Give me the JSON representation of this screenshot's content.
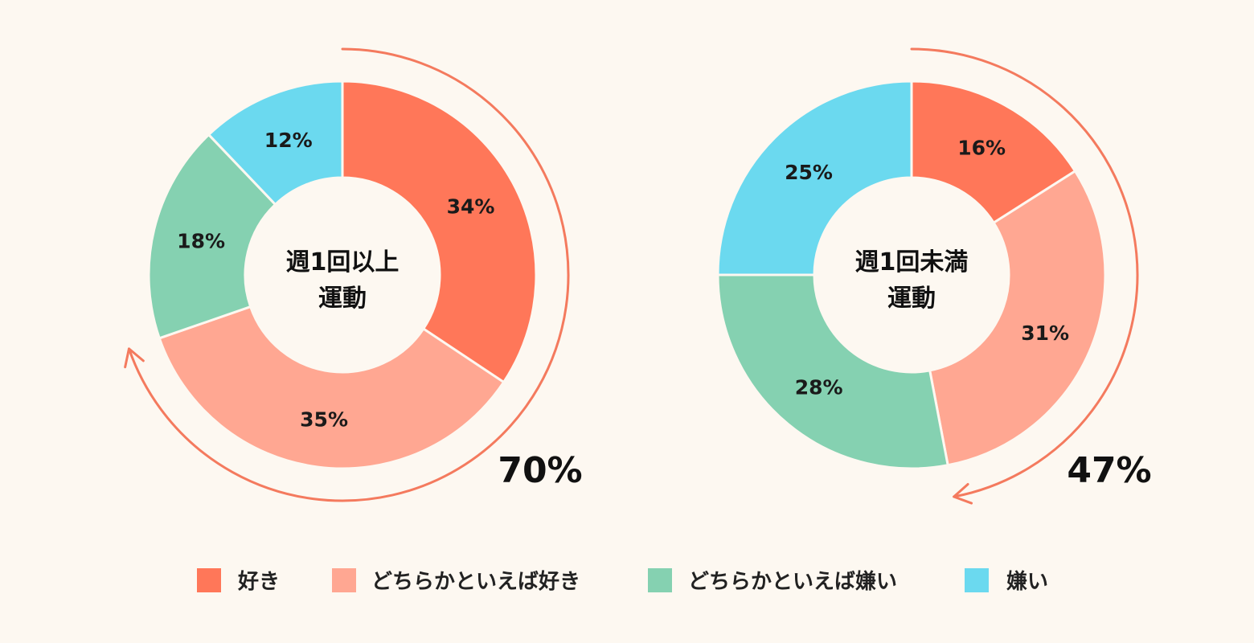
{
  "colors": {
    "like": "#ff7759",
    "rather_like": "#ffa792",
    "rather_dislike": "#85d1b1",
    "dislike": "#6bd9ef",
    "arc": "#f47a5e",
    "background": "#fdf8f1"
  },
  "chart_data": [
    {
      "type": "pie",
      "title_lines": [
        "週1回以上",
        "運動"
      ],
      "categories": [
        "好き",
        "どちらかといえば好き",
        "どちらかといえば嫌い",
        "嫌い"
      ],
      "values": [
        34,
        35,
        18,
        12
      ],
      "labels": [
        "34%",
        "35%",
        "18%",
        "12%"
      ],
      "arc_total": "70%",
      "arc_direction": "clockwise"
    },
    {
      "type": "pie",
      "title_lines": [
        "週1回未満",
        "運動"
      ],
      "categories": [
        "好き",
        "どちらかといえば好き",
        "どちらかといえば嫌い",
        "嫌い"
      ],
      "values": [
        16,
        31,
        28,
        25
      ],
      "labels": [
        "16%",
        "31%",
        "28%",
        "25%"
      ],
      "arc_total": "47%",
      "arc_direction": "clockwise"
    }
  ],
  "legend": [
    {
      "label": "好き",
      "color": "#ff7759"
    },
    {
      "label": "どちらかといえば好き",
      "color": "#ffa792"
    },
    {
      "label": "どちらかといえば嫌い",
      "color": "#85d1b1"
    },
    {
      "label": "嫌い",
      "color": "#6bd9ef"
    }
  ],
  "legend_placement": "bottom"
}
